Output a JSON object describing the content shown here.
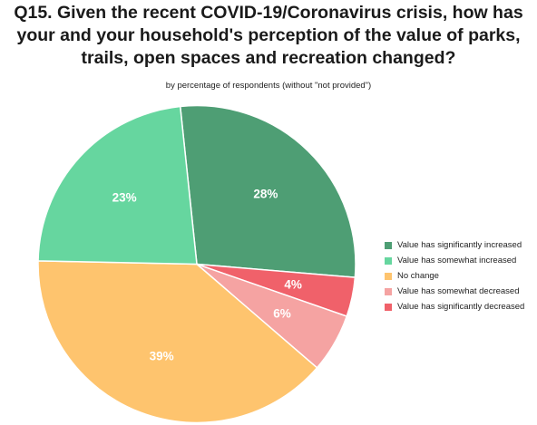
{
  "chart_data": {
    "type": "pie",
    "title_lines": [
      "Q15. Given the recent COVID-19/Coronavirus crisis, how has",
      "your and your household's perception of the value of parks,",
      "trails, open spaces and recreation changed?"
    ],
    "subtitle": "by percentage of respondents (without \"not provided\")",
    "slices": [
      {
        "label": "Value has significantly increased",
        "value": 28,
        "display": "28%",
        "color": "#4e9e74"
      },
      {
        "label": "Value has somewhat decreased",
        "value": 6,
        "display": "6%",
        "color": "#f5a3a2"
      },
      {
        "label": "Value has significantly decreased",
        "value": 4,
        "display": "4%",
        "color": "#f0616a"
      },
      {
        "label": "No change",
        "value": 39,
        "display": "39%",
        "color": "#fec46e"
      },
      {
        "label": "Value has somewhat increased",
        "value": 23,
        "display": "23%",
        "color": "#66d69f"
      }
    ],
    "draw_order": [
      "Value has significantly increased",
      "Value has significantly decreased",
      "Value has somewhat decreased",
      "No change",
      "Value has somewhat increased"
    ],
    "legend": [
      {
        "label": "Value has significantly increased",
        "color": "#4e9e74"
      },
      {
        "label": "Value has somewhat increased",
        "color": "#66d69f"
      },
      {
        "label": "No change",
        "color": "#fec46e"
      },
      {
        "label": "Value has somewhat decreased",
        "color": "#f5a3a2"
      },
      {
        "label": "Value has significantly decreased",
        "color": "#f0616a"
      }
    ],
    "legend_position": "right"
  }
}
